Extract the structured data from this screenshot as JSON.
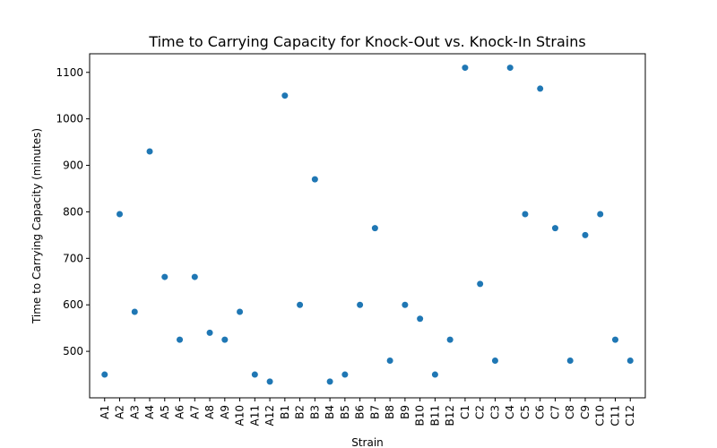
{
  "chart_data": {
    "type": "scatter",
    "title": "Time to Carrying Capacity for Knock-Out vs. Knock-In Strains",
    "xlabel": "Strain",
    "ylabel": "Time to Carrying Capacity (minutes)",
    "categories": [
      "A1",
      "A2",
      "A3",
      "A4",
      "A5",
      "A6",
      "A7",
      "A8",
      "A9",
      "A10",
      "A11",
      "A12",
      "B1",
      "B2",
      "B3",
      "B4",
      "B5",
      "B6",
      "B7",
      "B8",
      "B9",
      "B10",
      "B11",
      "B12",
      "C1",
      "C2",
      "C3",
      "C4",
      "C5",
      "C6",
      "C7",
      "C8",
      "C9",
      "C10",
      "C11",
      "C12"
    ],
    "values": [
      450,
      795,
      585,
      930,
      660,
      525,
      660,
      540,
      525,
      585,
      450,
      435,
      1050,
      600,
      870,
      435,
      450,
      600,
      765,
      480,
      600,
      570,
      450,
      525,
      1110,
      645,
      480,
      1110,
      795,
      1065,
      765,
      480,
      750,
      795,
      525,
      480
    ],
    "ylim": [
      400,
      1140
    ],
    "yticks": [
      500,
      600,
      700,
      800,
      900,
      1000,
      1100
    ],
    "grid": false,
    "marker_color": "#1f77b4"
  }
}
